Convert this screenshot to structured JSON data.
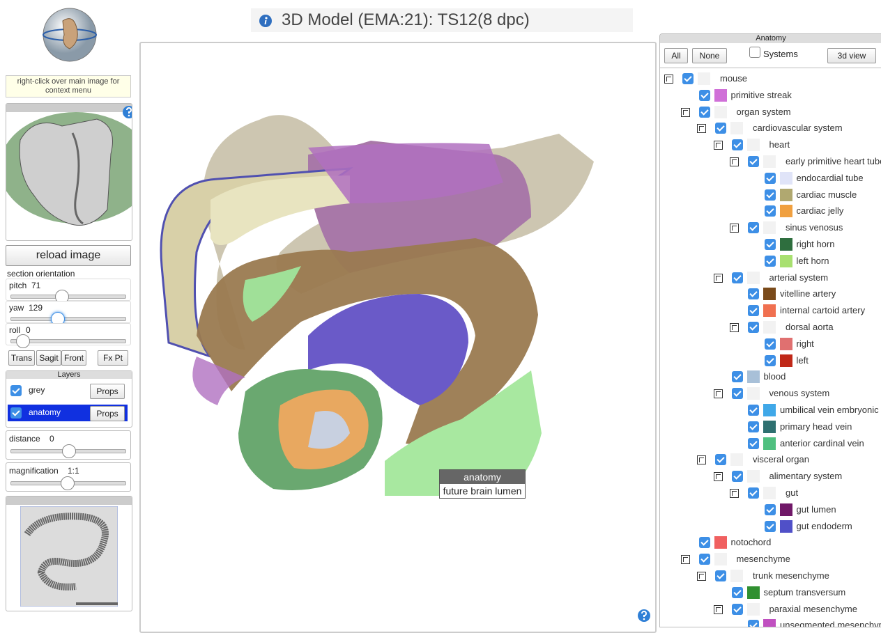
{
  "header": {
    "title": "3D Model (EMA:21): TS12(8 dpc)"
  },
  "left_panel": {
    "context_hint": "right-click over main image for context menu",
    "reload_button": "reload image",
    "section_label": "section orientation",
    "sliders": [
      {
        "label": "pitch",
        "value": 71
      },
      {
        "label": "yaw",
        "value": 129
      },
      {
        "label": "roll",
        "value": 0
      }
    ],
    "view_buttons": [
      "Trans",
      "Sagit",
      "Front",
      "Fx Pt"
    ],
    "layers": {
      "title": "Layers",
      "items": [
        {
          "name": "grey",
          "button": "Props"
        },
        {
          "name": "anatomy",
          "button": "Props"
        }
      ]
    },
    "distance": {
      "label": "distance",
      "value": 0
    },
    "magnification": {
      "label": "magnification",
      "value": "1:1"
    }
  },
  "tooltip": {
    "title": "anatomy",
    "text": "future brain lumen"
  },
  "anatomy_panel": {
    "title": "Anatomy",
    "buttons": [
      "All",
      "None"
    ],
    "systems_label": "Systems",
    "view_button": "3d view",
    "tree": [
      {
        "label": "mouse",
        "children": [
          {
            "label": "primitive streak",
            "color": "#d070d8"
          },
          {
            "label": "organ system",
            "children": [
              {
                "label": "cardiovascular system",
                "children": [
                  {
                    "label": "heart",
                    "children": [
                      {
                        "label": "early primitive heart tube",
                        "children": [
                          {
                            "label": "endocardial tube",
                            "color": "#e0e4f8"
                          },
                          {
                            "label": "cardiac muscle",
                            "color": "#b0a870"
                          },
                          {
                            "label": "cardiac jelly",
                            "color": "#f0a040"
                          }
                        ]
                      },
                      {
                        "label": "sinus venosus",
                        "children": [
                          {
                            "label": "right horn",
                            "color": "#2e6e3e"
                          },
                          {
                            "label": "left horn",
                            "color": "#a8e070"
                          }
                        ]
                      }
                    ]
                  },
                  {
                    "label": "arterial system",
                    "children": [
                      {
                        "label": "vitelline artery",
                        "color": "#7a4a1a"
                      },
                      {
                        "label": "internal cartoid artery",
                        "color": "#f07050"
                      },
                      {
                        "label": "dorsal aorta",
                        "children": [
                          {
                            "label": "right",
                            "color": "#e07070"
                          },
                          {
                            "label": "left",
                            "color": "#c02818"
                          }
                        ]
                      }
                    ]
                  },
                  {
                    "label": "blood",
                    "color": "#a8c0d8"
                  },
                  {
                    "label": "venous system",
                    "children": [
                      {
                        "label": "umbilical vein embryonic",
                        "color": "#40a8e8"
                      },
                      {
                        "label": "primary head vein",
                        "color": "#2e7070"
                      },
                      {
                        "label": "anterior cardinal vein",
                        "color": "#50c080"
                      }
                    ]
                  }
                ]
              },
              {
                "label": "visceral organ",
                "children": [
                  {
                    "label": "alimentary system",
                    "children": [
                      {
                        "label": "gut",
                        "children": [
                          {
                            "label": "gut lumen",
                            "color": "#701868"
                          },
                          {
                            "label": "gut endoderm",
                            "color": "#5050c8"
                          }
                        ]
                      }
                    ]
                  }
                ]
              }
            ]
          },
          {
            "label": "notochord",
            "color": "#f06060"
          },
          {
            "label": "mesenchyme",
            "children": [
              {
                "label": "trunk mesenchyme",
                "children": [
                  {
                    "label": "septum transversum",
                    "color": "#309030"
                  },
                  {
                    "label": "paraxial mesenchyme",
                    "children": [
                      {
                        "label": "unsegmented mesenchyme",
                        "color": "#c050c0"
                      }
                    ]
                  }
                ]
              }
            ]
          }
        ]
      }
    ]
  }
}
